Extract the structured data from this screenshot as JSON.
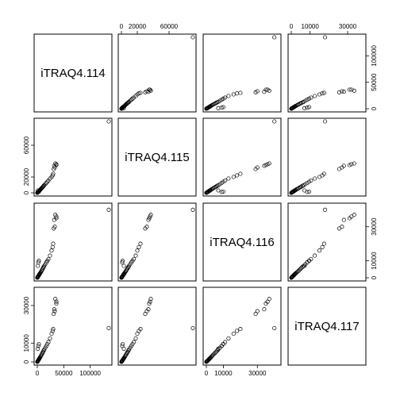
{
  "chart_data": {
    "type": "scatter",
    "variables": [
      "iTRAQ4.114",
      "iTRAQ4.115",
      "iTRAQ4.116",
      "iTRAQ4.117"
    ],
    "ranges": [
      [
        0,
        135000
      ],
      [
        0,
        90000
      ],
      [
        0,
        42000
      ],
      [
        0,
        38000
      ]
    ],
    "axes": {
      "top": {
        "1": {
          "ticks": [
            0,
            20000,
            60000
          ],
          "labels": [
            "0",
            "20000",
            "60000"
          ]
        },
        "3": {
          "ticks": [
            0,
            10000,
            30000
          ],
          "labels": [
            "0",
            "10000",
            "30000"
          ]
        }
      },
      "left": {
        "1": {
          "ticks": [
            0,
            20000,
            60000
          ],
          "labels": [
            "0",
            "20000",
            "60000"
          ]
        },
        "3": {
          "ticks": [
            0,
            10000,
            30000
          ],
          "labels": [
            "0",
            "10000",
            "30000"
          ]
        }
      },
      "right": {
        "0": {
          "ticks": [
            0,
            50000,
            100000
          ],
          "labels": [
            "0",
            "50000",
            "100000"
          ]
        },
        "2": {
          "ticks": [
            0,
            10000,
            30000
          ],
          "labels": [
            "0",
            "10000",
            "30000"
          ]
        }
      },
      "bottom": {
        "0": {
          "ticks": [
            0,
            50000,
            100000
          ],
          "labels": [
            "0",
            "50000",
            "100000"
          ]
        },
        "2": {
          "ticks": [
            0,
            10000,
            30000
          ],
          "labels": [
            "0",
            "10000",
            "30000"
          ]
        }
      }
    },
    "observations": [
      [
        0,
        0,
        0,
        0
      ],
      [
        300,
        200,
        150,
        150
      ],
      [
        600,
        400,
        300,
        250
      ],
      [
        900,
        700,
        500,
        400
      ],
      [
        1200,
        900,
        700,
        600
      ],
      [
        1500,
        1100,
        800,
        700
      ],
      [
        2000,
        1400,
        1000,
        900
      ],
      [
        2500,
        1800,
        1300,
        1100
      ],
      [
        3000,
        2100,
        1500,
        1400
      ],
      [
        3500,
        2500,
        1800,
        1600
      ],
      [
        4000,
        2900,
        2000,
        1800
      ],
      [
        4500,
        3200,
        2300,
        2100
      ],
      [
        5000,
        3600,
        2500,
        2300
      ],
      [
        6000,
        4300,
        3000,
        2800
      ],
      [
        7000,
        5000,
        3500,
        3300
      ],
      [
        8000,
        5700,
        4000,
        3800
      ],
      [
        9000,
        6500,
        4600,
        4300
      ],
      [
        10000,
        7200,
        5200,
        4900
      ],
      [
        11000,
        8000,
        5800,
        5400
      ],
      [
        12000,
        8800,
        6400,
        6000
      ],
      [
        13000,
        9600,
        7000,
        6600
      ],
      [
        15000,
        11000,
        8000,
        7500
      ],
      [
        17000,
        12500,
        9000,
        8500
      ],
      [
        19000,
        14000,
        10000,
        9500
      ],
      [
        21000,
        15500,
        11000,
        10500
      ],
      [
        24000,
        18000,
        13000,
        12500
      ],
      [
        27000,
        20000,
        16000,
        15000
      ],
      [
        29000,
        22000,
        18000,
        16500
      ],
      [
        30000,
        24000,
        20000,
        17500
      ],
      [
        31000,
        30000,
        29000,
        25500
      ],
      [
        33000,
        32000,
        30000,
        27000
      ],
      [
        36000,
        35000,
        35000,
        31000
      ],
      [
        34000,
        37000,
        37000,
        33500
      ],
      [
        36000,
        36000,
        36000,
        32000
      ],
      [
        32000,
        34000,
        34000,
        28000
      ],
      [
        2000,
        1000,
        9000,
        8500
      ],
      [
        3000,
        1500,
        10000,
        9500
      ],
      [
        1000,
        3000,
        7000,
        7000
      ],
      [
        135000,
        90000,
        40000,
        18000
      ]
    ]
  }
}
